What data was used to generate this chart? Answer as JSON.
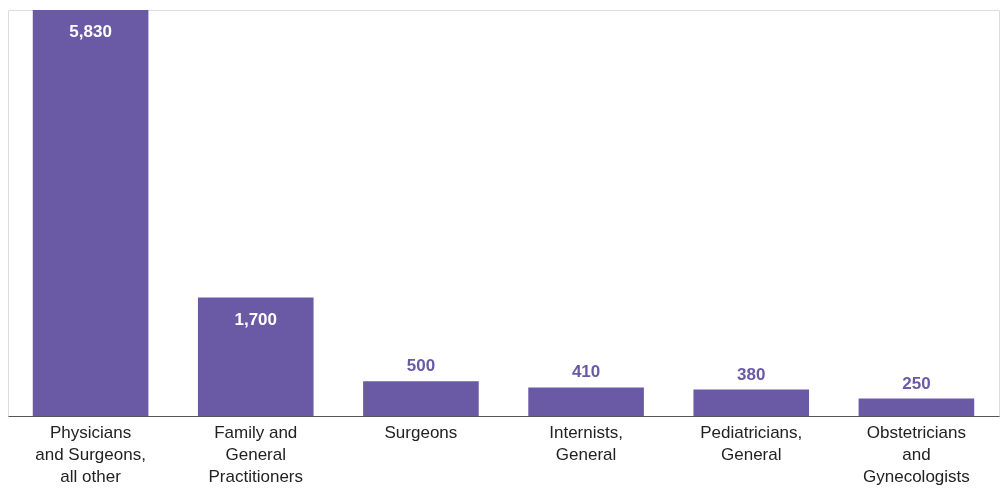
{
  "chart_data": {
    "type": "bar",
    "categories": [
      "Physicians and Surgeons, all other",
      "Family and General Practitioners",
      "Surgeons",
      "Internists, General",
      "Pediatricians, General",
      "Obstetricians and Gynecologists"
    ],
    "values": [
      5830,
      1700,
      500,
      410,
      380,
      250
    ],
    "color": "#6a5aa6",
    "value_labels": [
      "5,830",
      "1,700",
      "500",
      "410",
      "380",
      "250"
    ]
  }
}
